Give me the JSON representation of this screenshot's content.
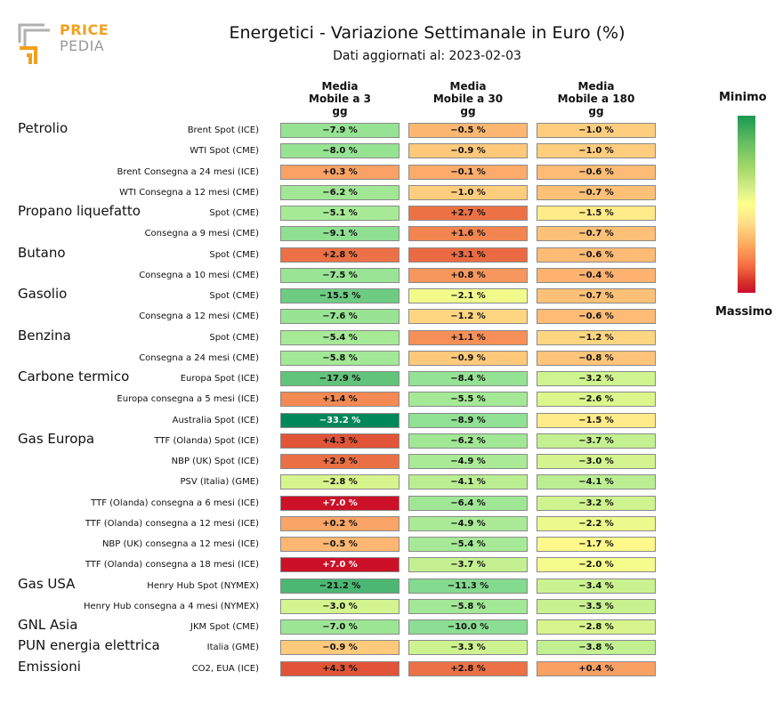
{
  "brand": {
    "top": "PRICE",
    "bottom": "PEDIA"
  },
  "title": "Energetici - Variazione Settimanale in Euro (%)",
  "subtitle": "Dati aggiornati al: 2023-02-03",
  "legend": {
    "min_label": "Minimo",
    "max_label": "Massimo"
  },
  "colors": {
    "min": "#00875a",
    "mid": "#ffff8c",
    "max": "#c8102e"
  },
  "chart_data": {
    "type": "table",
    "title": "Energetici - Variazione Settimanale in Euro (%)",
    "columns": [
      "Media\nMobile a 3\ngg",
      "Media\nMobile a 30\ngg",
      "Media\nMobile a 180\ngg"
    ],
    "groups": [
      {
        "name": "Petrolio",
        "row_start": 0
      },
      {
        "name": "Propano liquefatto",
        "row_start": 4
      },
      {
        "name": "Butano",
        "row_start": 6
      },
      {
        "name": "Gasolio",
        "row_start": 8
      },
      {
        "name": "Benzina",
        "row_start": 10
      },
      {
        "name": "Carbone termico",
        "row_start": 12
      },
      {
        "name": "Gas Europa",
        "row_start": 15
      },
      {
        "name": "Gas USA",
        "row_start": 22
      },
      {
        "name": "GNL Asia",
        "row_start": 24
      },
      {
        "name": "PUN energia elettrica",
        "row_start": 25
      },
      {
        "name": "Emissioni",
        "row_start": 26
      }
    ],
    "rows": [
      {
        "label": "Brent Spot (ICE)",
        "values": [
          -7.9,
          -0.5,
          -1.0
        ],
        "text": [
          "−7.9 %",
          "−0.5 %",
          "−1.0 %"
        ]
      },
      {
        "label": "WTI Spot (CME)",
        "values": [
          -8.0,
          -0.9,
          -1.0
        ],
        "text": [
          "−8.0 %",
          "−0.9 %",
          "−1.0 %"
        ]
      },
      {
        "label": "Brent Consegna a 24 mesi (ICE)",
        "values": [
          0.3,
          -0.1,
          -0.6
        ],
        "text": [
          "+0.3 %",
          "−0.1 %",
          "−0.6 %"
        ]
      },
      {
        "label": "WTI Consegna a 12 mesi (CME)",
        "values": [
          -6.2,
          -1.0,
          -0.7
        ],
        "text": [
          "−6.2 %",
          "−1.0 %",
          "−0.7 %"
        ]
      },
      {
        "label": "Spot (CME)",
        "values": [
          -5.1,
          2.7,
          -1.5
        ],
        "text": [
          "−5.1 %",
          "+2.7 %",
          "−1.5 %"
        ]
      },
      {
        "label": "Consegna a 9 mesi (CME)",
        "values": [
          -9.1,
          1.6,
          -0.7
        ],
        "text": [
          "−9.1 %",
          "+1.6 %",
          "−0.7 %"
        ]
      },
      {
        "label": "Spot (CME)",
        "values": [
          2.8,
          3.1,
          -0.6
        ],
        "text": [
          "+2.8 %",
          "+3.1 %",
          "−0.6 %"
        ]
      },
      {
        "label": "Consegna a 10 mesi (CME)",
        "values": [
          -7.5,
          0.8,
          -0.4
        ],
        "text": [
          "−7.5 %",
          "+0.8 %",
          "−0.4 %"
        ]
      },
      {
        "label": "Spot (CME)",
        "values": [
          -15.5,
          -2.1,
          -0.7
        ],
        "text": [
          "−15.5 %",
          "−2.1 %",
          "−0.7 %"
        ]
      },
      {
        "label": "Consegna a 12 mesi (CME)",
        "values": [
          -7.6,
          -1.2,
          -0.6
        ],
        "text": [
          "−7.6 %",
          "−1.2 %",
          "−0.6 %"
        ]
      },
      {
        "label": "Spot (CME)",
        "values": [
          -5.4,
          1.1,
          -1.2
        ],
        "text": [
          "−5.4 %",
          "+1.1 %",
          "−1.2 %"
        ]
      },
      {
        "label": "Consegna a 24 mesi (CME)",
        "values": [
          -5.8,
          -0.9,
          -0.8
        ],
        "text": [
          "−5.8 %",
          "−0.9 %",
          "−0.8 %"
        ]
      },
      {
        "label": "Europa Spot (ICE)",
        "values": [
          -17.9,
          -8.4,
          -3.2
        ],
        "text": [
          "−17.9 %",
          "−8.4 %",
          "−3.2 %"
        ]
      },
      {
        "label": "Europa consegna a 5 mesi (ICE)",
        "values": [
          1.4,
          -5.5,
          -2.6
        ],
        "text": [
          "+1.4 %",
          "−5.5 %",
          "−2.6 %"
        ]
      },
      {
        "label": "Australia Spot (ICE)",
        "values": [
          -33.2,
          -8.9,
          -1.5
        ],
        "text": [
          "−33.2 %",
          "−8.9 %",
          "−1.5 %"
        ]
      },
      {
        "label": "TTF (Olanda) Spot (ICE)",
        "values": [
          4.3,
          -6.2,
          -3.7
        ],
        "text": [
          "+4.3 %",
          "−6.2 %",
          "−3.7 %"
        ]
      },
      {
        "label": "NBP (UK) Spot (ICE)",
        "values": [
          2.9,
          -4.9,
          -3.0
        ],
        "text": [
          "+2.9 %",
          "−4.9 %",
          "−3.0 %"
        ]
      },
      {
        "label": "PSV (Italia) (GME)",
        "values": [
          -2.8,
          -4.1,
          -4.1
        ],
        "text": [
          "−2.8 %",
          "−4.1 %",
          "−4.1 %"
        ]
      },
      {
        "label": "TTF (Olanda) consegna a 6 mesi (ICE)",
        "values": [
          7.0,
          -6.4,
          -3.2
        ],
        "text": [
          "+7.0 %",
          "−6.4 %",
          "−3.2 %"
        ]
      },
      {
        "label": "TTF (Olanda) consegna a 12 mesi (ICE)",
        "values": [
          0.2,
          -4.9,
          -2.2
        ],
        "text": [
          "+0.2 %",
          "−4.9 %",
          "−2.2 %"
        ]
      },
      {
        "label": "NBP (UK) consegna a 12 mesi (ICE)",
        "values": [
          -0.5,
          -5.4,
          -1.7
        ],
        "text": [
          "−0.5 %",
          "−5.4 %",
          "−1.7 %"
        ]
      },
      {
        "label": "TTF (Olanda) consegna a 18 mesi (ICE)",
        "values": [
          7.0,
          -3.7,
          -2.0
        ],
        "text": [
          "+7.0 %",
          "−3.7 %",
          "−2.0 %"
        ]
      },
      {
        "label": "Henry Hub Spot (NYMEX)",
        "values": [
          -21.2,
          -11.3,
          -3.4
        ],
        "text": [
          "−21.2 %",
          "−11.3 %",
          "−3.4 %"
        ]
      },
      {
        "label": "Henry Hub consegna a 4 mesi (NYMEX)",
        "values": [
          -3.0,
          -5.8,
          -3.5
        ],
        "text": [
          "−3.0 %",
          "−5.8 %",
          "−3.5 %"
        ]
      },
      {
        "label": "JKM Spot (CME)",
        "values": [
          -7.0,
          -10.0,
          -2.8
        ],
        "text": [
          "−7.0 %",
          "−10.0 %",
          "−2.8 %"
        ]
      },
      {
        "label": "Italia (GME)",
        "values": [
          -0.9,
          -3.3,
          -3.8
        ],
        "text": [
          "−0.9 %",
          "−3.3 %",
          "−3.8 %"
        ]
      },
      {
        "label": "CO2, EUA (ICE)",
        "values": [
          4.3,
          2.8,
          0.4
        ],
        "text": [
          "+4.3 %",
          "+2.8 %",
          "+0.4 %"
        ]
      }
    ]
  }
}
